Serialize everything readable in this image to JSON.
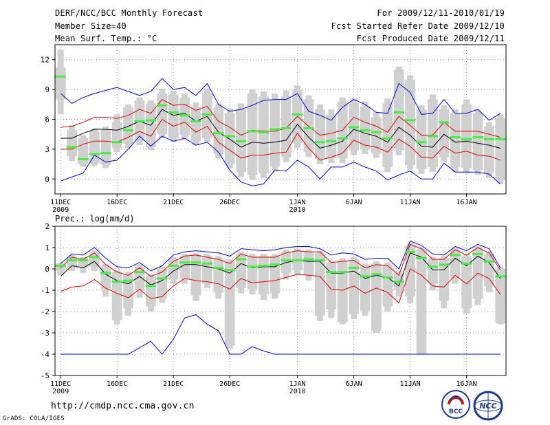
{
  "header": {
    "title": "DERF/NCC/BCC Monthly Forecast",
    "member_size": "Member Size=40",
    "variable": "Mean Surf. Temp.: °C",
    "forecast_period": "For 2009/12/11-2010/01/19",
    "start_refer_date": "Fcst Started Refer Date 2009/12/10",
    "produced_date": "Fcst Produced Date 2009/12/11"
  },
  "footer": {
    "url": "http://cmdp.ncc.cma.gov.cn",
    "credit": "GrADS: COLA/IGES",
    "logo_bcc_text": "BCC",
    "logo_ncc_text": "NCC"
  },
  "colors": {
    "background": "#ffffff",
    "box": "#d0d0d0",
    "median": "#44ee44",
    "mean": "#000000",
    "std_band": "#dd0000",
    "extreme_band": "#0000cc",
    "grid": "#999999"
  },
  "chart_data": [
    {
      "type": "box",
      "title": "Mean Surf. Temp.: °C",
      "ylim": [
        -1.5,
        13.5
      ],
      "yticks": [
        0,
        3,
        6,
        9,
        12
      ],
      "x_ticks": [
        {
          "day": 0,
          "label": "11DEC",
          "sub": "2009"
        },
        {
          "day": 5,
          "label": "16DEC",
          "sub": ""
        },
        {
          "day": 10,
          "label": "21DEC",
          "sub": ""
        },
        {
          "day": 15,
          "label": "26DEC",
          "sub": ""
        },
        {
          "day": 21,
          "label": "1JAN",
          "sub": "2010"
        },
        {
          "day": 26,
          "label": "6JAN",
          "sub": ""
        },
        {
          "day": 31,
          "label": "11JAN",
          "sub": ""
        },
        {
          "day": 36,
          "label": "16JAN",
          "sub": ""
        }
      ],
      "mean": [
        4.1,
        4.1,
        4.6,
        5.0,
        5.0,
        4.9,
        5.3,
        5.8,
        5.4,
        7.0,
        6.4,
        6.6,
        5.8,
        6.3,
        4.7,
        4.0,
        3.2,
        3.7,
        3.6,
        3.7,
        3.9,
        5.5,
        4.2,
        3.1,
        3.4,
        3.8,
        5.0,
        4.6,
        4.3,
        3.7,
        5.2,
        4.4,
        3.3,
        3.2,
        4.5,
        3.7,
        3.8,
        3.6,
        3.4,
        3.1
      ],
      "std_upper": [
        5.2,
        5.3,
        5.7,
        6.2,
        6.2,
        6.1,
        6.4,
        7.0,
        6.6,
        8.0,
        7.4,
        7.5,
        6.9,
        7.3,
        5.8,
        5.2,
        4.4,
        4.9,
        4.8,
        4.8,
        5.1,
        6.3,
        5.3,
        4.4,
        4.6,
        4.9,
        6.2,
        5.7,
        5.3,
        4.7,
        6.3,
        5.4,
        4.4,
        4.4,
        5.7,
        4.8,
        4.8,
        4.8,
        4.5,
        4.2
      ],
      "std_lower": [
        3.0,
        3.0,
        3.5,
        3.8,
        3.8,
        3.7,
        4.2,
        4.8,
        4.3,
        6.0,
        5.3,
        5.7,
        4.7,
        5.3,
        3.7,
        2.9,
        2.1,
        2.4,
        2.4,
        2.6,
        2.7,
        4.6,
        3.1,
        1.9,
        2.2,
        2.6,
        3.9,
        3.4,
        3.2,
        2.7,
        4.0,
        3.3,
        2.2,
        2.1,
        3.3,
        2.6,
        2.8,
        2.4,
        2.3,
        1.9
      ],
      "max": [
        8.6,
        7.6,
        8.2,
        8.6,
        8.9,
        9.2,
        8.8,
        8.4,
        8.8,
        10.1,
        9.0,
        9.2,
        8.4,
        9.6,
        7.5,
        6.8,
        7.0,
        7.4,
        7.9,
        8.0,
        8.0,
        8.6,
        6.8,
        6.4,
        5.9,
        7.2,
        8.0,
        7.5,
        6.7,
        6.6,
        9.6,
        8.7,
        6.5,
        6.6,
        8.0,
        6.6,
        6.6,
        7.0,
        5.9,
        6.6
      ],
      "min": [
        -0.2,
        0.2,
        0.6,
        2.4,
        1.7,
        1.9,
        3.0,
        4.3,
        3.3,
        4.3,
        3.8,
        4.1,
        3.4,
        3.7,
        2.7,
        0.9,
        -0.3,
        -0.7,
        -0.5,
        0.9,
        0.8,
        1.9,
        1.2,
        0.0,
        1.2,
        1.2,
        1.7,
        1.2,
        0.8,
        -0.1,
        0.4,
        0.8,
        0.0,
        0.0,
        1.6,
        0.7,
        0.7,
        0.7,
        0.5,
        -0.5
      ],
      "median": [
        10.3,
        3.2,
        2.0,
        2.5,
        2.6,
        3.7,
        4.9,
        5.8,
        5.9,
        7.4,
        6.7,
        6.4,
        5.8,
        6.5,
        4.6,
        4.3,
        3.8,
        4.8,
        4.7,
        5.0,
        5.1,
        6.5,
        5.1,
        3.7,
        3.8,
        4.1,
        5.2,
        4.9,
        4.7,
        4.1,
        6.7,
        5.9,
        3.7,
        4.3,
        5.7,
        4.2,
        4.0,
        4.2,
        4.0,
        4.0
      ],
      "box_top": [
        11.2,
        4.9,
        4.1,
        4.8,
        4.9,
        5.7,
        7.2,
        7.9,
        7.6,
        8.6,
        8.5,
        8.2,
        7.2,
        8.6,
        7.2,
        6.6,
        7.0,
        8.6,
        8.3,
        8.0,
        8.3,
        9.0,
        8.0,
        7.0,
        6.5,
        7.8,
        7.6,
        7.3,
        6.2,
        7.6,
        11.0,
        10.0,
        7.0,
        8.0,
        7.0,
        6.6,
        7.5,
        6.6,
        5.3,
        6.1
      ],
      "box_bottom": [
        8.0,
        2.3,
        1.5,
        1.6,
        1.4,
        3.1,
        3.5,
        3.8,
        3.2,
        4.5,
        4.1,
        4.4,
        3.8,
        4.1,
        2.5,
        1.5,
        0.7,
        0.4,
        0.6,
        1.3,
        2.2,
        3.6,
        2.7,
        2.0,
        2.1,
        2.1,
        2.9,
        3.0,
        2.6,
        1.2,
        2.9,
        1.4,
        1.0,
        1.2,
        2.2,
        1.2,
        1.1,
        0.9,
        0.6,
        -0.1
      ],
      "whisker_top": [
        13.0,
        5.4,
        4.4,
        5.1,
        5.3,
        6.5,
        7.5,
        8.2,
        7.9,
        9.1,
        8.9,
        8.6,
        7.7,
        9.1,
        7.6,
        7.1,
        7.6,
        9.0,
        8.8,
        8.6,
        8.9,
        9.4,
        8.4,
        7.5,
        7.0,
        8.2,
        8.1,
        7.8,
        6.7,
        8.1,
        11.3,
        10.4,
        7.4,
        8.5,
        7.4,
        7.0,
        8.0,
        7.0,
        5.7,
        6.5
      ],
      "whisker_bottom": [
        6.5,
        1.8,
        1.2,
        1.3,
        1.1,
        2.7,
        3.1,
        3.4,
        2.9,
        4.1,
        3.7,
        4.0,
        3.4,
        3.7,
        2.1,
        1.1,
        0.2,
        -0.1,
        0.1,
        0.8,
        1.7,
        3.1,
        2.2,
        1.5,
        1.6,
        1.6,
        2.4,
        2.5,
        2.1,
        0.7,
        2.4,
        0.9,
        0.5,
        0.7,
        1.7,
        0.7,
        0.6,
        0.4,
        0.1,
        -0.5
      ]
    },
    {
      "type": "box",
      "title": "Prec.: log(mm/d)",
      "ylim": [
        -5,
        2
      ],
      "yticks": [
        -5,
        -4,
        -3,
        -2,
        -1,
        0,
        1,
        2
      ],
      "x_ticks": [
        {
          "day": 0,
          "label": "11DEC",
          "sub": "2009"
        },
        {
          "day": 5,
          "label": "16DEC",
          "sub": ""
        },
        {
          "day": 10,
          "label": "21DEC",
          "sub": ""
        },
        {
          "day": 15,
          "label": "26DEC",
          "sub": ""
        },
        {
          "day": 21,
          "label": "1JAN",
          "sub": "2010"
        },
        {
          "day": 26,
          "label": "6JAN",
          "sub": ""
        },
        {
          "day": 31,
          "label": "11JAN",
          "sub": ""
        },
        {
          "day": 36,
          "label": "16JAN",
          "sub": ""
        }
      ],
      "mean": [
        -0.35,
        0.15,
        0.05,
        0.35,
        -0.25,
        -0.55,
        -0.7,
        -0.35,
        -0.75,
        -0.55,
        -0.1,
        0.2,
        0.2,
        0.1,
        0.0,
        -0.2,
        0.25,
        0.05,
        0.1,
        0.1,
        0.3,
        0.4,
        0.35,
        0.35,
        -0.2,
        -0.2,
        -0.1,
        -0.45,
        -0.3,
        -0.4,
        -0.8,
        0.75,
        0.55,
        -0.05,
        -0.05,
        0.5,
        0.15,
        0.6,
        0.3,
        -0.45
      ],
      "std_upper": [
        0.05,
        0.55,
        0.45,
        0.75,
        0.2,
        -0.15,
        -0.3,
        0.05,
        -0.35,
        -0.15,
        0.35,
        0.6,
        0.65,
        0.55,
        0.45,
        0.25,
        0.7,
        0.55,
        0.55,
        0.55,
        0.75,
        0.85,
        0.8,
        0.8,
        0.3,
        0.35,
        0.4,
        0.05,
        0.2,
        0.15,
        -0.3,
        1.15,
        0.95,
        0.45,
        0.45,
        0.9,
        0.65,
        1.0,
        0.75,
        -0.05
      ],
      "std_lower": [
        -1.05,
        -0.85,
        -0.8,
        -0.5,
        -0.9,
        -1.15,
        -1.35,
        -0.95,
        -1.4,
        -1.3,
        -0.8,
        -0.45,
        -0.55,
        -0.6,
        -0.7,
        -0.95,
        -0.45,
        -0.65,
        -0.6,
        -0.55,
        -0.4,
        -0.25,
        -0.3,
        -0.35,
        -0.95,
        -1.0,
        -0.8,
        -1.15,
        -0.9,
        -1.1,
        -1.6,
        0.0,
        -0.3,
        -0.8,
        -0.85,
        -0.3,
        -0.7,
        -0.2,
        -0.45,
        -1.2
      ],
      "max": [
        0.25,
        0.7,
        0.65,
        1.0,
        0.5,
        0.1,
        0.05,
        0.3,
        -0.1,
        0.15,
        0.65,
        0.8,
        0.85,
        0.8,
        0.75,
        0.6,
        0.95,
        0.9,
        0.85,
        0.9,
        1.0,
        1.05,
        1.05,
        0.95,
        0.65,
        0.75,
        0.7,
        0.45,
        0.5,
        0.5,
        0.0,
        1.3,
        1.1,
        0.7,
        0.65,
        1.05,
        0.85,
        1.15,
        0.95,
        0.05
      ],
      "min": [
        -4,
        -4,
        -4,
        -4,
        -4,
        -4,
        -4,
        -3.7,
        -3.4,
        -4.0,
        -3.3,
        -2.3,
        -2.15,
        -2.6,
        -2.9,
        -4.0,
        -4.0,
        -3.65,
        -3.85,
        -4.0,
        -4,
        -4,
        -4,
        -4,
        -4,
        -4,
        -4,
        -4,
        -4,
        -4,
        -4,
        -4,
        -4,
        -4,
        -4,
        -4,
        -4,
        -4,
        -4,
        -4
      ],
      "median": [
        0.15,
        0.4,
        0.4,
        0.55,
        -0.2,
        -0.6,
        -0.55,
        -0.15,
        -0.8,
        -0.45,
        0.15,
        0.3,
        0.3,
        0.25,
        0.05,
        -0.05,
        0.45,
        0.1,
        0.15,
        0.2,
        0.4,
        0.4,
        0.45,
        0.4,
        -0.15,
        -0.15,
        0.05,
        -0.35,
        -0.25,
        -0.4,
        -0.6,
        0.8,
        0.5,
        0.1,
        0.2,
        0.65,
        0.25,
        0.7,
        0.35,
        -0.35
      ],
      "box_top": [
        0.25,
        0.55,
        0.5,
        0.75,
        0.15,
        -0.15,
        -0.25,
        0.1,
        -0.35,
        0.0,
        0.45,
        0.6,
        0.65,
        0.6,
        0.5,
        0.35,
        0.7,
        0.6,
        0.6,
        0.6,
        0.8,
        0.85,
        0.8,
        0.75,
        0.3,
        0.4,
        0.45,
        0.15,
        0.25,
        0.2,
        -0.2,
        1.1,
        0.9,
        0.45,
        0.5,
        0.9,
        0.6,
        0.95,
        0.7,
        0.0
      ],
      "box_bottom": [
        -0.1,
        0.1,
        0.05,
        0.1,
        -0.95,
        -2.4,
        -1.85,
        -1.0,
        -1.75,
        -1.4,
        -0.5,
        -0.45,
        -1.25,
        -0.7,
        -1.1,
        -3.6,
        -0.9,
        -0.95,
        -1.2,
        -1.15,
        -0.2,
        -0.05,
        -0.3,
        -2.2,
        -1.9,
        -2.5,
        -2.1,
        -1.95,
        -2.9,
        -1.75,
        -1.0,
        -1.3,
        -4.0,
        -0.7,
        -1.5,
        -0.45,
        -1.85,
        -1.4,
        -0.8,
        -2.55
      ],
      "whisker_top": [
        0.3,
        0.65,
        0.55,
        0.85,
        0.25,
        -0.05,
        -0.15,
        0.2,
        -0.25,
        0.1,
        0.55,
        0.7,
        0.75,
        0.7,
        0.6,
        0.45,
        0.8,
        0.7,
        0.7,
        0.7,
        0.9,
        0.95,
        0.9,
        0.85,
        0.4,
        0.5,
        0.55,
        0.25,
        0.35,
        0.3,
        -0.1,
        1.2,
        1.0,
        0.55,
        0.6,
        1.0,
        0.7,
        1.05,
        0.8,
        0.1
      ],
      "whisker_bottom": [
        -0.3,
        -0.1,
        -0.2,
        -0.1,
        -1.3,
        -2.6,
        -2.2,
        -1.35,
        -2.0,
        -1.6,
        -0.7,
        -0.7,
        -1.5,
        -0.9,
        -1.4,
        -3.75,
        -1.15,
        -1.2,
        -1.45,
        -1.4,
        -0.5,
        -0.3,
        -0.55,
        -2.45,
        -2.3,
        -2.6,
        -2.35,
        -2.2,
        -3.0,
        -2.0,
        -1.3,
        -1.6,
        -4.0,
        -1.0,
        -1.85,
        -0.7,
        -2.1,
        -1.7,
        -1.1,
        -2.6
      ]
    }
  ]
}
